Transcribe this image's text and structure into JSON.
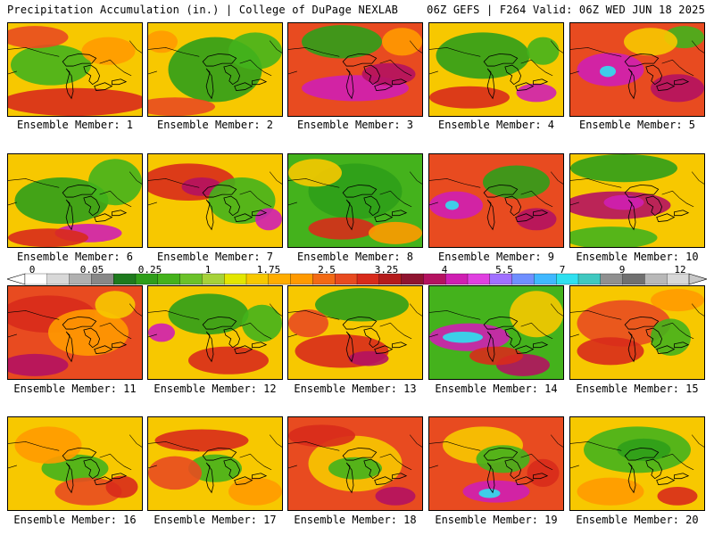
{
  "header": {
    "left_title": "Precipitation Accumulation (in.) | College of DuPage NEXLAB",
    "right_title": "06Z GEFS | F264 Valid: 06Z WED JUN 18 2025"
  },
  "caption_prefix": "Ensemble Member: ",
  "members": [
    {
      "label": "Ensemble Member: 1",
      "bg": "#f7c800",
      "blobs": [
        [
          "#44b21c",
          0.32,
          0.45,
          0.3,
          0.22
        ],
        [
          "#d82b1b",
          0.5,
          0.85,
          0.55,
          0.15
        ],
        [
          "#e84b20",
          0.2,
          0.15,
          0.25,
          0.12
        ],
        [
          "#ff9a00",
          0.75,
          0.3,
          0.2,
          0.15
        ]
      ]
    },
    {
      "label": "Ensemble Member: 2",
      "bg": "#f7c800",
      "blobs": [
        [
          "#2f9e1a",
          0.5,
          0.5,
          0.35,
          0.35
        ],
        [
          "#44b21c",
          0.8,
          0.3,
          0.2,
          0.2
        ],
        [
          "#e84b20",
          0.2,
          0.9,
          0.3,
          0.1
        ],
        [
          "#ff9a00",
          0.1,
          0.2,
          0.12,
          0.12
        ]
      ]
    },
    {
      "label": "Ensemble Member: 3",
      "bg": "#e84b20",
      "blobs": [
        [
          "#2f9e1a",
          0.4,
          0.2,
          0.3,
          0.18
        ],
        [
          "#cf1fb2",
          0.5,
          0.7,
          0.4,
          0.14
        ],
        [
          "#b41260",
          0.75,
          0.55,
          0.2,
          0.12
        ],
        [
          "#ff9a00",
          0.85,
          0.2,
          0.15,
          0.15
        ]
      ]
    },
    {
      "label": "Ensemble Member: 4",
      "bg": "#f7c800",
      "blobs": [
        [
          "#2f9e1a",
          0.4,
          0.35,
          0.35,
          0.25
        ],
        [
          "#d82b1b",
          0.3,
          0.8,
          0.3,
          0.12
        ],
        [
          "#cf1fb2",
          0.8,
          0.75,
          0.15,
          0.1
        ],
        [
          "#44b21c",
          0.85,
          0.3,
          0.12,
          0.15
        ]
      ]
    },
    {
      "label": "Ensemble Member: 5",
      "bg": "#e84b20",
      "blobs": [
        [
          "#cf1fb2",
          0.3,
          0.5,
          0.25,
          0.18
        ],
        [
          "#2fe0f0",
          0.28,
          0.52,
          0.06,
          0.06
        ],
        [
          "#b41260",
          0.8,
          0.7,
          0.2,
          0.15
        ],
        [
          "#44b21c",
          0.85,
          0.15,
          0.15,
          0.12
        ],
        [
          "#f7c800",
          0.6,
          0.2,
          0.2,
          0.15
        ]
      ]
    },
    {
      "label": "Ensemble Member: 6",
      "bg": "#f7c800",
      "blobs": [
        [
          "#2f9e1a",
          0.4,
          0.5,
          0.35,
          0.25
        ],
        [
          "#44b21c",
          0.8,
          0.3,
          0.2,
          0.25
        ],
        [
          "#cf1fb2",
          0.6,
          0.85,
          0.25,
          0.1
        ],
        [
          "#d82b1b",
          0.3,
          0.9,
          0.3,
          0.1
        ]
      ]
    },
    {
      "label": "Ensemble Member: 7",
      "bg": "#f7c800",
      "blobs": [
        [
          "#d82b1b",
          0.3,
          0.3,
          0.35,
          0.2
        ],
        [
          "#b41260",
          0.4,
          0.35,
          0.15,
          0.1
        ],
        [
          "#44b21c",
          0.7,
          0.5,
          0.25,
          0.25
        ],
        [
          "#cf1fb2",
          0.9,
          0.7,
          0.1,
          0.12
        ]
      ]
    },
    {
      "label": "Ensemble Member: 8",
      "bg": "#44b21c",
      "blobs": [
        [
          "#2f9e1a",
          0.5,
          0.4,
          0.35,
          0.3
        ],
        [
          "#f7c800",
          0.2,
          0.2,
          0.2,
          0.15
        ],
        [
          "#d82b1b",
          0.4,
          0.8,
          0.25,
          0.12
        ],
        [
          "#ff9a00",
          0.8,
          0.85,
          0.2,
          0.12
        ]
      ]
    },
    {
      "label": "Ensemble Member: 9",
      "bg": "#e84b20",
      "blobs": [
        [
          "#cf1fb2",
          0.2,
          0.55,
          0.2,
          0.15
        ],
        [
          "#2fe0f0",
          0.17,
          0.55,
          0.05,
          0.05
        ],
        [
          "#2f9e1a",
          0.65,
          0.3,
          0.25,
          0.18
        ],
        [
          "#b41260",
          0.8,
          0.7,
          0.15,
          0.12
        ]
      ]
    },
    {
      "label": "Ensemble Member: 10",
      "bg": "#f7c800",
      "blobs": [
        [
          "#2f9e1a",
          0.4,
          0.15,
          0.4,
          0.15
        ],
        [
          "#b41260",
          0.35,
          0.55,
          0.4,
          0.15
        ],
        [
          "#cf1fb2",
          0.4,
          0.52,
          0.15,
          0.08
        ],
        [
          "#44b21c",
          0.3,
          0.9,
          0.35,
          0.12
        ]
      ]
    },
    {
      "label": "Ensemble Member: 11",
      "bg": "#e84b20",
      "blobs": [
        [
          "#d82b1b",
          0.3,
          0.3,
          0.35,
          0.2
        ],
        [
          "#ff9a00",
          0.6,
          0.5,
          0.3,
          0.25
        ],
        [
          "#b41260",
          0.2,
          0.85,
          0.25,
          0.12
        ],
        [
          "#f7c800",
          0.8,
          0.2,
          0.15,
          0.15
        ]
      ]
    },
    {
      "label": "Ensemble Member: 12",
      "bg": "#f7c800",
      "blobs": [
        [
          "#2f9e1a",
          0.45,
          0.3,
          0.3,
          0.22
        ],
        [
          "#cf1fb2",
          0.1,
          0.5,
          0.1,
          0.1
        ],
        [
          "#d82b1b",
          0.6,
          0.8,
          0.3,
          0.15
        ],
        [
          "#44b21c",
          0.85,
          0.4,
          0.15,
          0.2
        ]
      ]
    },
    {
      "label": "Ensemble Member: 13",
      "bg": "#f7c800",
      "blobs": [
        [
          "#2f9e1a",
          0.55,
          0.2,
          0.35,
          0.18
        ],
        [
          "#d82b1b",
          0.4,
          0.7,
          0.35,
          0.18
        ],
        [
          "#b41260",
          0.6,
          0.78,
          0.15,
          0.08
        ],
        [
          "#e84b20",
          0.15,
          0.4,
          0.15,
          0.15
        ]
      ]
    },
    {
      "label": "Ensemble Member: 14",
      "bg": "#44b21c",
      "blobs": [
        [
          "#cf1fb2",
          0.3,
          0.55,
          0.3,
          0.15
        ],
        [
          "#2fe0f0",
          0.25,
          0.55,
          0.15,
          0.06
        ],
        [
          "#b41260",
          0.7,
          0.85,
          0.2,
          0.12
        ],
        [
          "#f7c800",
          0.8,
          0.3,
          0.2,
          0.25
        ],
        [
          "#d82b1b",
          0.5,
          0.75,
          0.2,
          0.1
        ]
      ]
    },
    {
      "label": "Ensemble Member: 15",
      "bg": "#f7c800",
      "blobs": [
        [
          "#e84b20",
          0.4,
          0.4,
          0.35,
          0.25
        ],
        [
          "#d82b1b",
          0.3,
          0.7,
          0.25,
          0.15
        ],
        [
          "#44b21c",
          0.75,
          0.55,
          0.15,
          0.2
        ],
        [
          "#ff9a00",
          0.8,
          0.15,
          0.2,
          0.12
        ]
      ]
    },
    {
      "label": "Ensemble Member: 16",
      "bg": "#f7c800",
      "blobs": [
        [
          "#44b21c",
          0.5,
          0.55,
          0.25,
          0.15
        ],
        [
          "#ff9a00",
          0.3,
          0.3,
          0.25,
          0.2
        ],
        [
          "#e84b20",
          0.6,
          0.8,
          0.25,
          0.15
        ],
        [
          "#d82b1b",
          0.85,
          0.75,
          0.12,
          0.12
        ]
      ]
    },
    {
      "label": "Ensemble Member: 17",
      "bg": "#f7c800",
      "blobs": [
        [
          "#d82b1b",
          0.4,
          0.25,
          0.35,
          0.12
        ],
        [
          "#44b21c",
          0.5,
          0.55,
          0.2,
          0.15
        ],
        [
          "#e84b20",
          0.2,
          0.6,
          0.2,
          0.18
        ],
        [
          "#ff9a00",
          0.8,
          0.8,
          0.2,
          0.15
        ]
      ]
    },
    {
      "label": "Ensemble Member: 18",
      "bg": "#e84b20",
      "blobs": [
        [
          "#f7c800",
          0.5,
          0.5,
          0.35,
          0.3
        ],
        [
          "#44b21c",
          0.5,
          0.55,
          0.2,
          0.12
        ],
        [
          "#d82b1b",
          0.25,
          0.2,
          0.25,
          0.12
        ],
        [
          "#b41260",
          0.8,
          0.85,
          0.15,
          0.1
        ]
      ]
    },
    {
      "label": "Ensemble Member: 19",
      "bg": "#e84b20",
      "blobs": [
        [
          "#f7c800",
          0.4,
          0.3,
          0.3,
          0.2
        ],
        [
          "#44b21c",
          0.55,
          0.45,
          0.2,
          0.15
        ],
        [
          "#cf1fb2",
          0.5,
          0.8,
          0.25,
          0.12
        ],
        [
          "#2fe0f0",
          0.45,
          0.82,
          0.08,
          0.05
        ],
        [
          "#d82b1b",
          0.85,
          0.6,
          0.12,
          0.15
        ]
      ]
    },
    {
      "label": "Ensemble Member: 20",
      "bg": "#f7c800",
      "blobs": [
        [
          "#44b21c",
          0.5,
          0.35,
          0.4,
          0.25
        ],
        [
          "#2f9e1a",
          0.55,
          0.35,
          0.2,
          0.12
        ],
        [
          "#ff9a00",
          0.3,
          0.8,
          0.25,
          0.15
        ],
        [
          "#d82b1b",
          0.8,
          0.85,
          0.15,
          0.1
        ]
      ]
    }
  ],
  "colorbar": {
    "colors": [
      "#ffffff",
      "#d8d8d8",
      "#b0b0b0",
      "#888888",
      "#1e7a1e",
      "#2f9e1a",
      "#44b21c",
      "#6bc22a",
      "#a6d23a",
      "#e3e600",
      "#f7c800",
      "#ffad00",
      "#ff9a00",
      "#f26a15",
      "#e84b20",
      "#d82b1b",
      "#b41c1c",
      "#8f1430",
      "#b41260",
      "#cf1fb2",
      "#e040e0",
      "#a070ff",
      "#6f8fff",
      "#40b8ff",
      "#2fe0f0",
      "#40c8c0",
      "#909090",
      "#707070",
      "#b8b8b8",
      "#d8d8d8"
    ],
    "labels": [
      "0",
      "0.05",
      "0.25",
      "1",
      "1.75",
      "2.5",
      "3.25",
      "4",
      "5.5",
      "7",
      "9",
      "12"
    ]
  }
}
